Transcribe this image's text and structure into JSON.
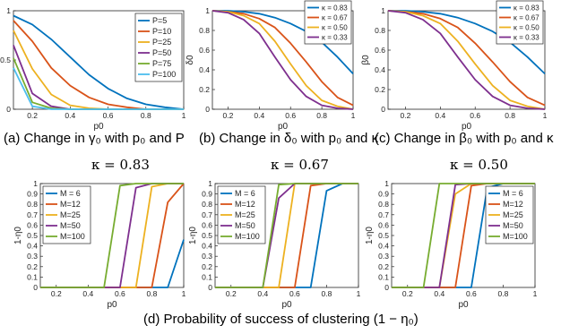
{
  "captions": {
    "a": "(a) Change in γ₀ with p₀ and P",
    "b": "(b) Change in δ₀ with p₀ and κ",
    "c": "(c) Change in β₀ with p₀ and κ",
    "d": "(d) Probability of success of clustering (1 − η₀)"
  },
  "colors": [
    "#0072BD",
    "#D95319",
    "#EDB120",
    "#7E2F8E",
    "#77AC30",
    "#4DBEEE"
  ],
  "chart_data": [
    {
      "type": "line",
      "xlabel": "p0",
      "ylabel": "γ0",
      "xlim": [
        0.1,
        1
      ],
      "ylim": [
        0,
        1
      ],
      "xticks": [
        "0.2",
        "0.4",
        "0.6",
        "0.8",
        "1"
      ],
      "yticks": [
        "0",
        "0.5",
        "1"
      ],
      "legend_position": "top-right",
      "series": [
        {
          "name": "P=5",
          "x": [
            0.1,
            0.2,
            0.3,
            0.4,
            0.5,
            0.6,
            0.7,
            0.8,
            0.9,
            1.0
          ],
          "values": [
            0.95,
            0.86,
            0.71,
            0.53,
            0.35,
            0.21,
            0.11,
            0.05,
            0.02,
            0.0
          ]
        },
        {
          "name": "P=10",
          "x": [
            0.1,
            0.2,
            0.3,
            0.4,
            0.5,
            0.6,
            0.7,
            0.8,
            0.9,
            1.0
          ],
          "values": [
            0.9,
            0.69,
            0.42,
            0.24,
            0.12,
            0.05,
            0.02,
            0.0,
            0.0,
            0.0
          ]
        },
        {
          "name": "P=25",
          "x": [
            0.1,
            0.2,
            0.3,
            0.4,
            0.5,
            0.6,
            0.7,
            0.8,
            0.9,
            1.0
          ],
          "values": [
            0.8,
            0.41,
            0.15,
            0.04,
            0.01,
            0.0,
            0.0,
            0.0,
            0.0,
            0.0
          ]
        },
        {
          "name": "P=50",
          "x": [
            0.1,
            0.2,
            0.3,
            0.4,
            0.5,
            0.6,
            0.7,
            0.8,
            0.9,
            1.0
          ],
          "values": [
            0.65,
            0.16,
            0.03,
            0.0,
            0.0,
            0.0,
            0.0,
            0.0,
            0.0,
            0.0
          ]
        },
        {
          "name": "P=75",
          "x": [
            0.1,
            0.2,
            0.3,
            0.4,
            0.5,
            0.6,
            0.7,
            0.8,
            0.9,
            1.0
          ],
          "values": [
            0.52,
            0.07,
            0.01,
            0.0,
            0.0,
            0.0,
            0.0,
            0.0,
            0.0,
            0.0
          ]
        },
        {
          "name": "P=100",
          "x": [
            0.1,
            0.2,
            0.3,
            0.4,
            0.5,
            0.6,
            0.7,
            0.8,
            0.9,
            1.0
          ],
          "values": [
            0.42,
            0.03,
            0.0,
            0.0,
            0.0,
            0.0,
            0.0,
            0.0,
            0.0,
            0.0
          ]
        }
      ]
    },
    {
      "type": "line",
      "xlabel": "p0",
      "ylabel": "δ0",
      "xlim": [
        0.1,
        1
      ],
      "ylim": [
        0,
        1
      ],
      "xticks": [
        "0.2",
        "0.4",
        "0.6",
        "0.8",
        "1"
      ],
      "yticks": [
        "0",
        "0.2",
        "0.4",
        "0.6",
        "0.8",
        "1"
      ],
      "legend_position": "top-right",
      "series": [
        {
          "name": "κ = 0.83",
          "x": [
            0.1,
            0.2,
            0.3,
            0.4,
            0.5,
            0.6,
            0.7,
            0.8,
            0.9,
            1.0
          ],
          "values": [
            1.0,
            1.0,
            0.99,
            0.97,
            0.93,
            0.87,
            0.79,
            0.68,
            0.53,
            0.36
          ]
        },
        {
          "name": "κ = 0.67",
          "x": [
            0.1,
            0.2,
            0.3,
            0.4,
            0.5,
            0.6,
            0.7,
            0.8,
            0.9,
            1.0
          ],
          "values": [
            1.0,
            0.99,
            0.97,
            0.92,
            0.83,
            0.67,
            0.48,
            0.28,
            0.12,
            0.04
          ]
        },
        {
          "name": "κ = 0.50",
          "x": [
            0.1,
            0.2,
            0.3,
            0.4,
            0.5,
            0.6,
            0.7,
            0.8,
            0.9,
            1.0
          ],
          "values": [
            1.0,
            0.99,
            0.95,
            0.87,
            0.69,
            0.46,
            0.24,
            0.09,
            0.03,
            0.0
          ]
        },
        {
          "name": "κ = 0.33",
          "x": [
            0.1,
            0.2,
            0.3,
            0.4,
            0.5,
            0.6,
            0.7,
            0.8,
            0.9,
            1.0
          ],
          "values": [
            1.0,
            0.98,
            0.91,
            0.77,
            0.53,
            0.3,
            0.13,
            0.04,
            0.01,
            0.0
          ]
        }
      ]
    },
    {
      "type": "line",
      "xlabel": "p0",
      "ylabel": "β0",
      "xlim": [
        0.1,
        1
      ],
      "ylim": [
        0,
        1
      ],
      "xticks": [
        "0.2",
        "0.4",
        "0.6",
        "0.8",
        "1"
      ],
      "yticks": [
        "0",
        "0.2",
        "0.4",
        "0.6",
        "0.8",
        "1"
      ],
      "legend_position": "top-right",
      "series": [
        {
          "name": "κ = 0.83",
          "x": [
            0.1,
            0.2,
            0.3,
            0.4,
            0.5,
            0.6,
            0.7,
            0.8,
            0.9,
            1.0
          ],
          "values": [
            1.0,
            1.0,
            0.99,
            0.97,
            0.93,
            0.87,
            0.79,
            0.68,
            0.53,
            0.36
          ]
        },
        {
          "name": "κ = 0.67",
          "x": [
            0.1,
            0.2,
            0.3,
            0.4,
            0.5,
            0.6,
            0.7,
            0.8,
            0.9,
            1.0
          ],
          "values": [
            1.0,
            0.99,
            0.97,
            0.92,
            0.83,
            0.67,
            0.48,
            0.28,
            0.12,
            0.04
          ]
        },
        {
          "name": "κ = 0.50",
          "x": [
            0.1,
            0.2,
            0.3,
            0.4,
            0.5,
            0.6,
            0.7,
            0.8,
            0.9,
            1.0
          ],
          "values": [
            1.0,
            0.99,
            0.95,
            0.87,
            0.69,
            0.46,
            0.24,
            0.09,
            0.03,
            0.0
          ]
        },
        {
          "name": "κ = 0.33",
          "x": [
            0.1,
            0.2,
            0.3,
            0.4,
            0.5,
            0.6,
            0.7,
            0.8,
            0.9,
            1.0
          ],
          "values": [
            1.0,
            0.98,
            0.91,
            0.77,
            0.53,
            0.3,
            0.13,
            0.04,
            0.01,
            0.0
          ]
        }
      ]
    },
    {
      "type": "line",
      "title": "κ = 0.83",
      "xlabel": "p0",
      "ylabel": "1-η0",
      "xlim": [
        0.1,
        1
      ],
      "ylim": [
        0,
        1
      ],
      "xticks": [
        "0.2",
        "0.4",
        "0.6",
        "0.8",
        "1"
      ],
      "yticks": [
        "0",
        "0.1",
        "0.2",
        "0.3",
        "0.4",
        "0.5",
        "0.6",
        "0.7",
        "0.8",
        "0.9",
        "1"
      ],
      "legend_position": "top-left",
      "series": [
        {
          "name": "M = 6",
          "x": [
            0.1,
            0.9,
            1.0
          ],
          "values": [
            0,
            0,
            0.46
          ]
        },
        {
          "name": "M=12",
          "x": [
            0.1,
            0.8,
            0.9,
            1.0
          ],
          "values": [
            0,
            0,
            0.82,
            1.0
          ]
        },
        {
          "name": "M=25",
          "x": [
            0.1,
            0.7,
            0.8,
            0.9,
            1.0
          ],
          "values": [
            0,
            0,
            0.97,
            1.0,
            1.0
          ]
        },
        {
          "name": "M=50",
          "x": [
            0.1,
            0.6,
            0.7,
            0.8,
            1.0
          ],
          "values": [
            0,
            0,
            0.96,
            1.0,
            1.0
          ]
        },
        {
          "name": "M=100",
          "x": [
            0.1,
            0.5,
            0.6,
            0.7,
            1.0
          ],
          "values": [
            0,
            0,
            0.98,
            1.0,
            1.0
          ]
        }
      ]
    },
    {
      "type": "line",
      "title": "κ = 0.67",
      "xlabel": "p0",
      "ylabel": "1-η0",
      "xlim": [
        0.1,
        1
      ],
      "ylim": [
        0,
        1
      ],
      "xticks": [
        "0.2",
        "0.4",
        "0.6",
        "0.8",
        "1"
      ],
      "yticks": [
        "0",
        "0.1",
        "0.2",
        "0.3",
        "0.4",
        "0.5",
        "0.6",
        "0.7",
        "0.8",
        "0.9",
        "1"
      ],
      "legend_position": "top-left",
      "series": [
        {
          "name": "M = 6",
          "x": [
            0.1,
            0.7,
            0.8,
            0.9,
            1.0
          ],
          "values": [
            0,
            0,
            0.93,
            1.0,
            1.0
          ]
        },
        {
          "name": "M=12",
          "x": [
            0.1,
            0.6,
            0.7,
            0.8,
            1.0
          ],
          "values": [
            0,
            0,
            0.98,
            1.0,
            1.0
          ]
        },
        {
          "name": "M=25",
          "x": [
            0.1,
            0.5,
            0.6,
            0.7,
            1.0
          ],
          "values": [
            0,
            0,
            1.0,
            1.0,
            1.0
          ]
        },
        {
          "name": "M=50",
          "x": [
            0.1,
            0.4,
            0.5,
            0.6,
            1.0
          ],
          "values": [
            0,
            0,
            0.86,
            1.0,
            1.0
          ]
        },
        {
          "name": "M=100",
          "x": [
            0.1,
            0.4,
            0.5,
            0.6,
            1.0
          ],
          "values": [
            0,
            0,
            0.99,
            1.0,
            1.0
          ]
        }
      ]
    },
    {
      "type": "line",
      "title": "κ = 0.50",
      "xlabel": "p0",
      "ylabel": "1-η0",
      "xlim": [
        0.1,
        1
      ],
      "ylim": [
        0,
        1
      ],
      "xticks": [
        "0.2",
        "0.4",
        "0.6",
        "0.8",
        "1"
      ],
      "yticks": [
        "0",
        "0.1",
        "0.2",
        "0.3",
        "0.4",
        "0.5",
        "0.6",
        "0.7",
        "0.8",
        "0.9",
        "1"
      ],
      "legend_position": "top-right",
      "series": [
        {
          "name": "M = 6",
          "x": [
            0.1,
            0.6,
            0.7,
            0.8,
            1.0
          ],
          "values": [
            0,
            0,
            0.96,
            1.0,
            1.0
          ]
        },
        {
          "name": "M=12",
          "x": [
            0.1,
            0.5,
            0.6,
            0.7,
            1.0
          ],
          "values": [
            0,
            0,
            0.98,
            1.0,
            1.0
          ]
        },
        {
          "name": "M=25",
          "x": [
            0.1,
            0.4,
            0.5,
            0.6,
            1.0
          ],
          "values": [
            0,
            0,
            0.9,
            1.0,
            1.0
          ]
        },
        {
          "name": "M=50",
          "x": [
            0.1,
            0.4,
            0.5,
            0.6,
            1.0
          ],
          "values": [
            0,
            0,
            0.99,
            1.0,
            1.0
          ]
        },
        {
          "name": "M=100",
          "x": [
            0.1,
            0.3,
            0.4,
            0.5,
            1.0
          ],
          "values": [
            0,
            0,
            1.0,
            1.0,
            1.0
          ]
        }
      ]
    }
  ]
}
